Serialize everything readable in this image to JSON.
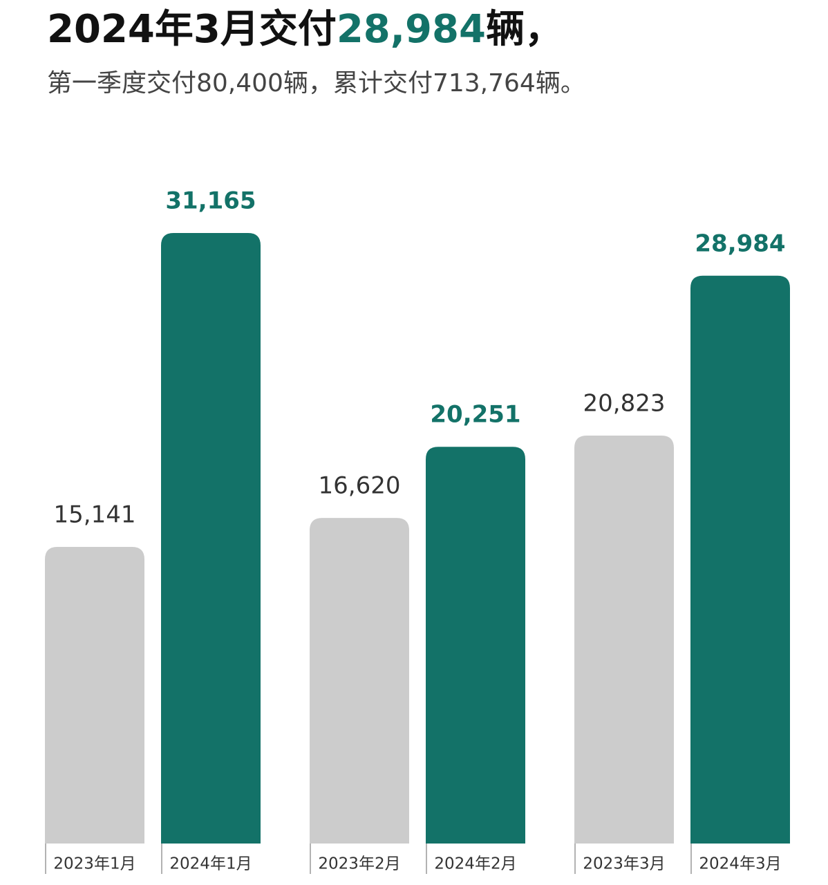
{
  "chart_data": {
    "type": "bar",
    "title": [
      "2024年3月交付",
      "28,984",
      "辆，"
    ],
    "subtitle": "第一季度交付80,400辆，累计交付713,764辆。",
    "categories": [
      "2023年1月",
      "2024年1月",
      "2023年2月",
      "2024年2月",
      "2023年3月",
      "2024年3月"
    ],
    "values": [
      15141,
      31165,
      16620,
      20251,
      20823,
      28984
    ],
    "value_labels": [
      "15,141",
      "31,165",
      "16,620",
      "20,251",
      "20,823",
      "28,984"
    ],
    "colors": [
      "#cccccc",
      "#137268",
      "#cccccc",
      "#137268",
      "#cccccc",
      "#137268"
    ]
  }
}
